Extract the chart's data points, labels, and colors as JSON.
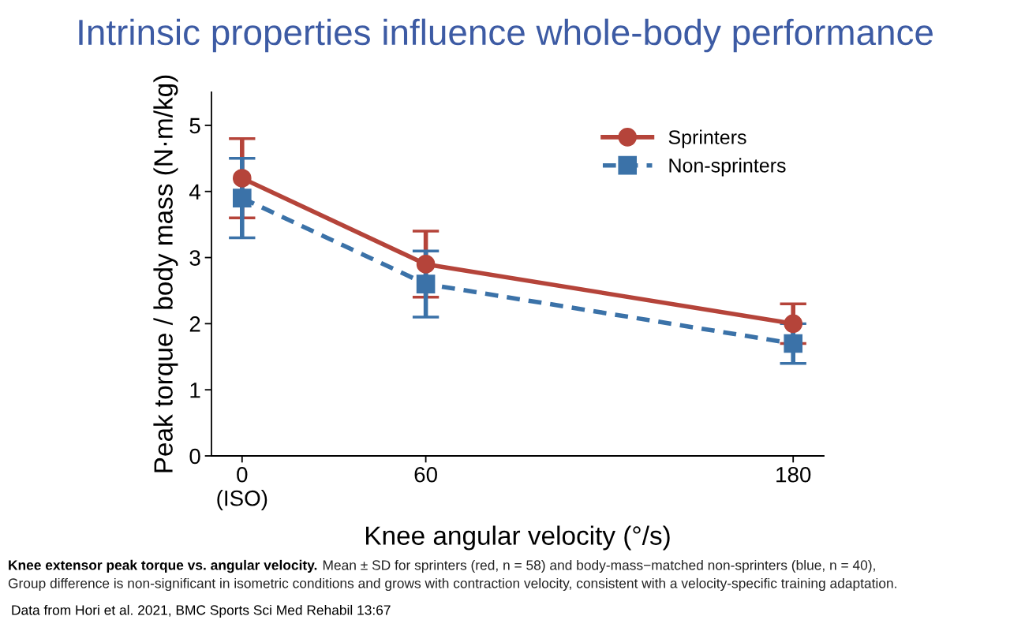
{
  "chart_data": {
    "type": "line",
    "title": "Intrinsic properties influence whole-body performance",
    "xlabel": "Knee angular velocity (°/s)",
    "ylabel": "Peak torque / body mass (N·m/kg)",
    "x": [
      0,
      60,
      180
    ],
    "series": [
      {
        "name": "Sprinters",
        "color": "#b5443a",
        "values": [
          4.2,
          2.9,
          2.0
        ],
        "errors": [
          0.6,
          0.5,
          0.3
        ],
        "marker": "circle",
        "line_style": "solid"
      },
      {
        "name": "Non-sprinters",
        "color": "#3b72a8",
        "values": [
          3.9,
          2.6,
          1.7
        ],
        "errors": [
          0.6,
          0.5,
          0.3
        ],
        "marker": "square",
        "line_style": "dashed"
      }
    ],
    "xlim": [
      -10,
      190
    ],
    "xticks": [
      {
        "value": 0,
        "label": "0\n(ISO)"
      },
      60,
      180
    ],
    "ylim": [
      0,
      5.5
    ],
    "yticks": [
      0,
      1,
      2,
      3,
      4,
      5
    ],
    "grid": false,
    "legend": "top right",
    "annotations": [
      "Knee extensor peak torque vs. angular velocity.",
      "Mean ± SD for sprinters (red, n = 58) and body-mass−matched non-sprinters (blue, n = 40),",
      "Group difference is non-significant in isometric conditions and grows with contraction velocity, consistent with a velocity-specific training adaptation.",
      "Data from Hori et al. 2021, BMC Sports Sci Med Rehabil 13:67"
    ]
  }
}
